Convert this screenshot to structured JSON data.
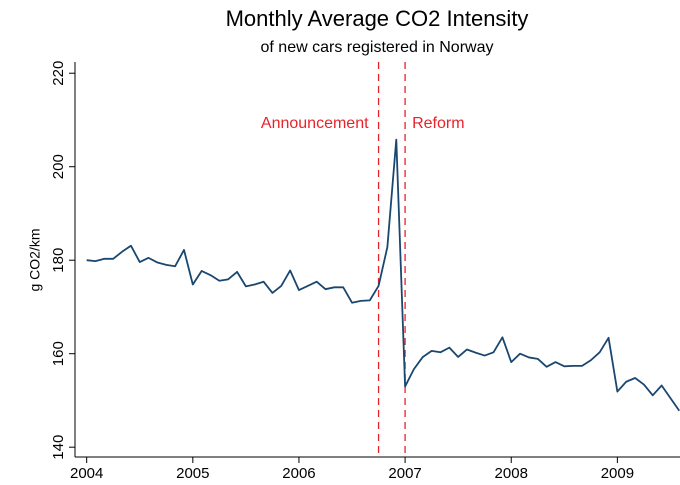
{
  "chart_data": {
    "type": "line",
    "title": "Monthly Average CO2 Intensity",
    "subtitle": "of new cars registered in Norway",
    "y_label": "g CO2/km",
    "x": [
      2004,
      2004.083,
      2004.167,
      2004.25,
      2004.333,
      2004.417,
      2004.5,
      2004.583,
      2004.667,
      2004.75,
      2004.833,
      2004.917,
      2005,
      2005.083,
      2005.167,
      2005.25,
      2005.333,
      2005.417,
      2005.5,
      2005.583,
      2005.667,
      2005.75,
      2005.833,
      2005.917,
      2006,
      2006.083,
      2006.167,
      2006.25,
      2006.333,
      2006.417,
      2006.5,
      2006.583,
      2006.667,
      2006.75,
      2006.833,
      2006.917,
      2007,
      2007.083,
      2007.167,
      2007.25,
      2007.333,
      2007.417,
      2007.5,
      2007.583,
      2007.667,
      2007.75,
      2007.833,
      2007.917,
      2008,
      2008.083,
      2008.167,
      2008.25,
      2008.333,
      2008.417,
      2008.5,
      2008.583,
      2008.667,
      2008.75,
      2008.833,
      2008.917,
      2009,
      2009.083,
      2009.167,
      2009.25,
      2009.333,
      2009.417,
      2009.5,
      2009.583
    ],
    "series": [
      {
        "color": "#1a476f",
        "values": [
          180,
          179.8,
          180.3,
          180.3,
          181.8,
          183.1,
          179.6,
          180.5,
          179.5,
          179,
          178.7,
          182.2,
          174.8,
          177.7,
          176.8,
          175.6,
          175.9,
          177.5,
          174.4,
          174.8,
          175.4,
          173,
          174.5,
          177.8,
          173.6,
          174.5,
          175.4,
          173.8,
          174.2,
          174.2,
          170.9,
          171.3,
          171.4,
          174.5,
          182.8,
          205.8,
          153,
          156.7,
          159.3,
          160.6,
          160.3,
          161.3,
          159.3,
          160.9,
          160.2,
          159.6,
          160.3,
          163.5,
          158.2,
          160,
          159.2,
          158.9,
          157.2,
          158.2,
          157.3,
          157.4,
          157.4,
          158.6,
          160.3,
          163.4,
          151.9,
          154,
          154.8,
          153.4,
          151.1,
          153.2,
          150.5,
          147.8
        ]
      }
    ],
    "xlim": [
      2003.89,
      2009.59
    ],
    "xticks": [
      2004,
      2005,
      2006,
      2007,
      2008,
      2009
    ],
    "ylim": [
      137.9,
      222.4
    ],
    "yticks": [
      140,
      160,
      180,
      200,
      220
    ],
    "grid": false,
    "annotations": [
      {
        "x": 2006.75,
        "label": "Announcement",
        "side": "left",
        "color": "#e8232a"
      },
      {
        "x": 2007,
        "label": "Reform",
        "side": "right",
        "color": "#e8232a"
      }
    ]
  }
}
